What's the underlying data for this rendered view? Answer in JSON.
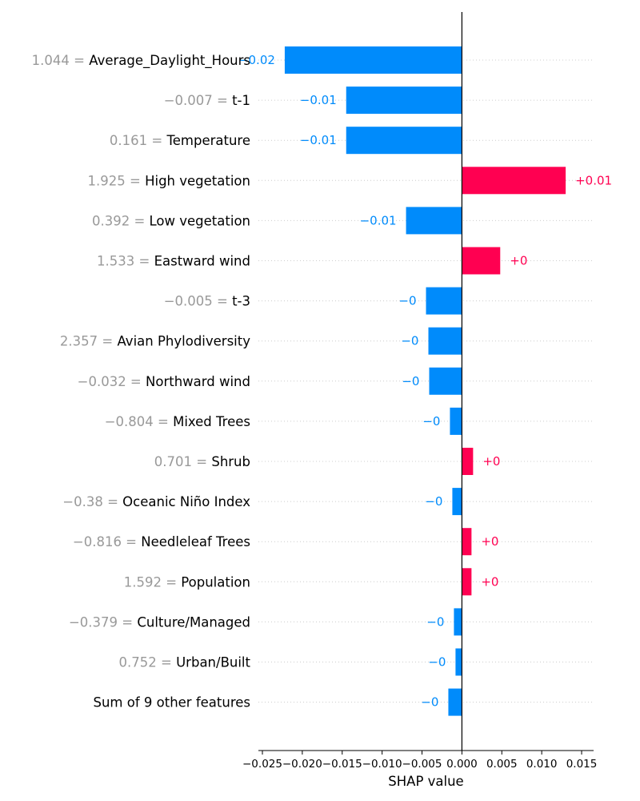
{
  "chart_data": {
    "type": "bar",
    "orientation": "horizontal",
    "xlabel": "SHAP value",
    "xlim": [
      -0.0255,
      0.0165
    ],
    "xticks": [
      {
        "value": -0.025,
        "label": "−0.025"
      },
      {
        "value": -0.02,
        "label": "−0.020"
      },
      {
        "value": -0.015,
        "label": "−0.015"
      },
      {
        "value": -0.01,
        "label": "−0.010"
      },
      {
        "value": -0.005,
        "label": "−0.005"
      },
      {
        "value": 0.0,
        "label": "0.000"
      },
      {
        "value": 0.005,
        "label": "0.005"
      },
      {
        "value": 0.01,
        "label": "0.010"
      },
      {
        "value": 0.015,
        "label": "0.015"
      }
    ],
    "features": [
      {
        "feature_value": "1.044",
        "name": "Average_Daylight_Hours",
        "shap": -0.0222,
        "label": "−0.02"
      },
      {
        "feature_value": "−0.007",
        "name": "t-1",
        "shap": -0.0145,
        "label": "−0.01"
      },
      {
        "feature_value": "0.161",
        "name": "Temperature",
        "shap": -0.0145,
        "label": "−0.01"
      },
      {
        "feature_value": "1.925",
        "name": "High vegetation",
        "shap": 0.013,
        "label": "+0.01"
      },
      {
        "feature_value": "0.392",
        "name": "Low vegetation",
        "shap": -0.007,
        "label": "−0.01"
      },
      {
        "feature_value": "1.533",
        "name": "Eastward wind",
        "shap": 0.0048,
        "label": "+0"
      },
      {
        "feature_value": "−0.005",
        "name": "t-3",
        "shap": -0.0045,
        "label": "−0"
      },
      {
        "feature_value": "2.357",
        "name": "Avian Phylodiversity",
        "shap": -0.0042,
        "label": "−0"
      },
      {
        "feature_value": "−0.032",
        "name": "Northward wind",
        "shap": -0.0041,
        "label": "−0"
      },
      {
        "feature_value": "−0.804",
        "name": "Mixed Trees",
        "shap": -0.0015,
        "label": "−0"
      },
      {
        "feature_value": "0.701",
        "name": "Shrub",
        "shap": 0.0014,
        "label": "+0"
      },
      {
        "feature_value": "−0.38",
        "name": "Oceanic Niño Index",
        "shap": -0.0012,
        "label": "−0"
      },
      {
        "feature_value": "−0.816",
        "name": "Needleleaf Trees",
        "shap": 0.0012,
        "label": "+0"
      },
      {
        "feature_value": "1.592",
        "name": "Population",
        "shap": 0.0012,
        "label": "+0"
      },
      {
        "feature_value": "−0.379",
        "name": "Culture/Managed",
        "shap": -0.001,
        "label": "−0"
      },
      {
        "feature_value": "0.752",
        "name": "Urban/Built",
        "shap": -0.0008,
        "label": "−0"
      },
      {
        "feature_value": "",
        "name": "Sum of 9 other features",
        "shap": -0.0017,
        "label": "−0"
      }
    ],
    "colors": {
      "negative": "#008bfb",
      "positive": "#ff0051",
      "feature_value_text": "#999999",
      "gridline": "#cccccc"
    },
    "grid": "dotted horizontal row guides"
  }
}
